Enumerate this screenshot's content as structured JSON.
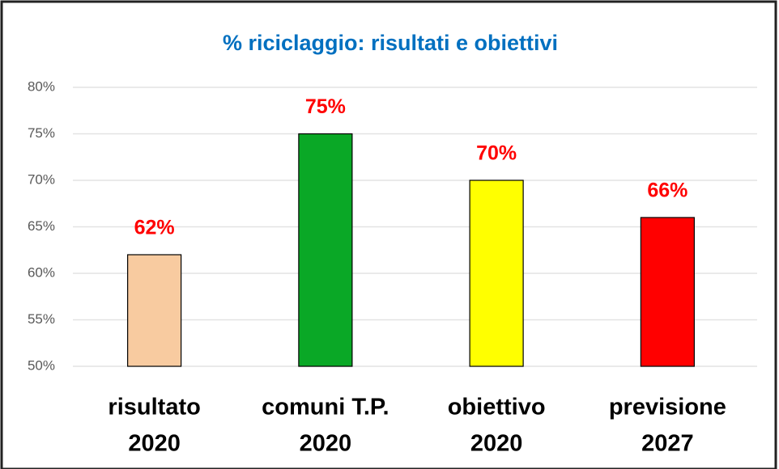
{
  "chart_data": {
    "type": "bar",
    "title": "% riciclaggio: risultati e obiettivi",
    "categories": [
      [
        "risultato",
        "2020"
      ],
      [
        "comuni T.P.",
        "2020"
      ],
      [
        "obiettivo",
        "2020"
      ],
      [
        "previsione",
        "2027"
      ]
    ],
    "values": [
      62,
      75,
      70,
      66
    ],
    "value_labels": [
      "62%",
      "75%",
      "70%",
      "66%"
    ],
    "colors": [
      "#f8cba0",
      "#0aa826",
      "#ffff00",
      "#ff0000"
    ],
    "ylim": [
      50,
      80
    ],
    "yticks": [
      {
        "value": 50,
        "label": "50%"
      },
      {
        "value": 55,
        "label": "55%"
      },
      {
        "value": 60,
        "label": "60%"
      },
      {
        "value": 65,
        "label": "65%"
      },
      {
        "value": 70,
        "label": "70%"
      },
      {
        "value": 75,
        "label": "75%"
      },
      {
        "value": 80,
        "label": "80%"
      }
    ],
    "grid": true
  }
}
